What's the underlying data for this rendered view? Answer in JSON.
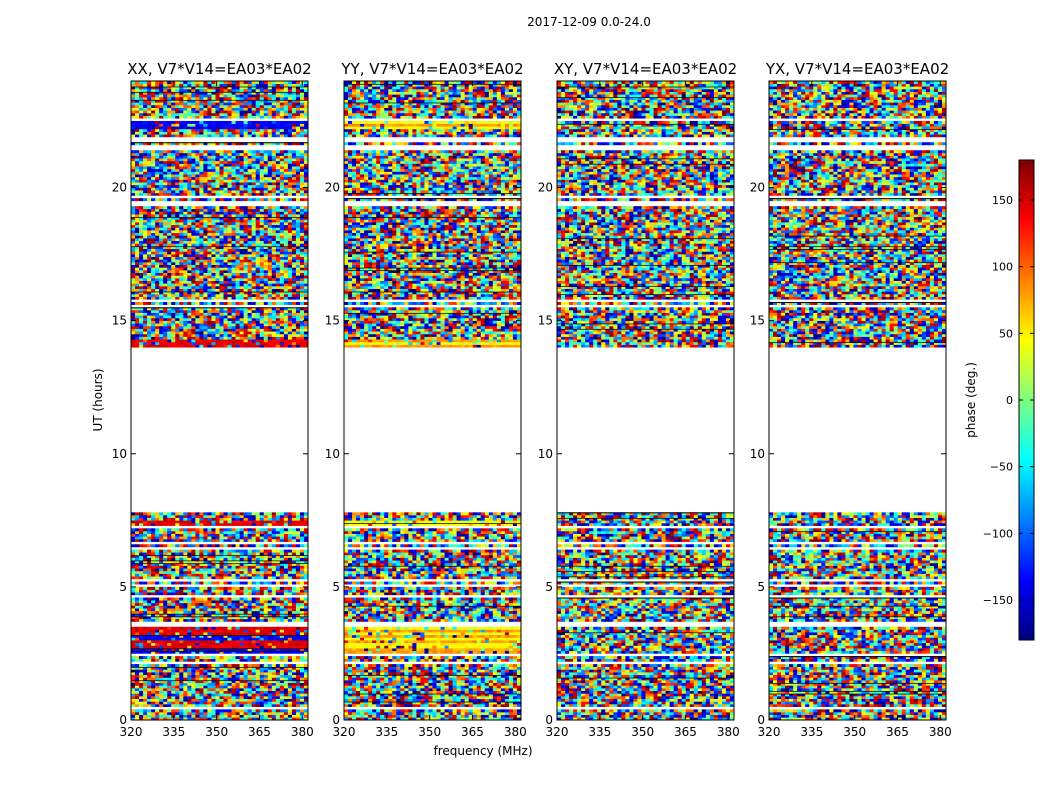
{
  "figure": {
    "suptitle": "2017-12-09 0.0-24.0",
    "xlabel": "frequency (MHz)",
    "ylabel": "UT (hours)"
  },
  "colorbar": {
    "label": "phase (deg.)",
    "range": [
      -180,
      180
    ],
    "ticks": [
      150,
      100,
      50,
      0,
      -50,
      -100,
      -150
    ],
    "tick_labels": [
      "150",
      "100",
      "50",
      "0",
      "−50",
      "−100",
      "−150"
    ],
    "colormap": "jet",
    "colors": [
      "#00007f",
      "#0000ff",
      "#007fff",
      "#00ffff",
      "#7fff7f",
      "#ffff00",
      "#ff7f00",
      "#ff0000",
      "#7f0000"
    ]
  },
  "chart_data": {
    "type": "heatmap",
    "xlim": [
      320,
      382
    ],
    "ylim": [
      0,
      24
    ],
    "x_ticks": [
      320,
      335,
      350,
      365,
      380
    ],
    "y_ticks": [
      0,
      5,
      10,
      15,
      20
    ],
    "value_quantity": "phase (deg.)",
    "panels": [
      {
        "title": "XX, V7*V14=EA03*EA02",
        "pol": "XX",
        "show_y_labels": true,
        "show_xlabel": false
      },
      {
        "title": "YY, V7*V14=EA03*EA02",
        "pol": "YY",
        "show_y_labels": true,
        "show_xlabel": true
      },
      {
        "title": "XY, V7*V14=EA03*EA02",
        "pol": "XY",
        "show_y_labels": true,
        "show_xlabel": false
      },
      {
        "title": "YX, V7*V14=EA03*EA02",
        "pol": "YX",
        "show_y_labels": true,
        "show_xlabel": false
      }
    ],
    "data_gaps_hours": [
      [
        7.8,
        14.0
      ]
    ],
    "flagged_rows_hours": [
      0.45,
      2.15,
      2.45,
      3.6,
      4.65,
      5.05,
      5.25,
      6.45,
      6.65,
      7.25,
      15.55,
      15.75,
      19.4,
      19.65,
      21.5,
      21.8,
      22.55
    ]
  }
}
